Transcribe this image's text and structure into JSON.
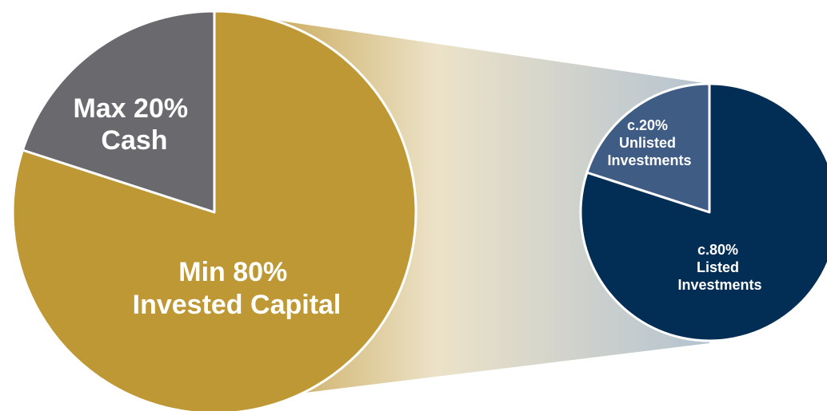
{
  "chart_data": [
    {
      "type": "pie",
      "slices": [
        {
          "key": "cash",
          "label_lines": [
            "Max 20%",
            "Cash"
          ],
          "value": 20,
          "color": "#6a6a6e"
        },
        {
          "key": "invested",
          "label_lines": [
            "Min 80%",
            "Invested Capital"
          ],
          "value": 80,
          "color": "#bd9834"
        }
      ]
    },
    {
      "type": "pie",
      "slices": [
        {
          "key": "unlisted",
          "label_lines": [
            "c.20%",
            "Unlisted",
            "Investments"
          ],
          "value": 20,
          "color": "#3e5c84"
        },
        {
          "key": "listed",
          "label_lines": [
            "c.80%",
            "Listed",
            "Investments"
          ],
          "value": 80,
          "color": "#022d55"
        }
      ]
    }
  ],
  "colors": {
    "connector_gradient": [
      "#c09a3a",
      "#ece2c8",
      "#b4c3d0"
    ],
    "slice_separator": "#ffffff"
  }
}
